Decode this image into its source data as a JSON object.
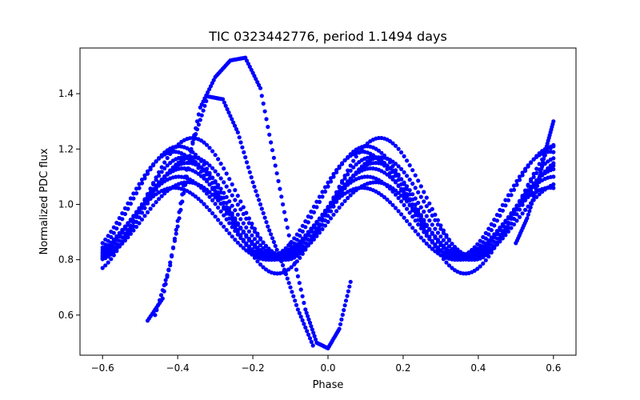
{
  "chart_data": {
    "type": "scatter",
    "title": "TIC 0323442776, period 1.1494 days",
    "xlabel": "Phase",
    "ylabel": "Normalized PDC flux",
    "xlim": [
      -0.66,
      0.66
    ],
    "ylim": [
      0.455,
      1.565
    ],
    "xticks": [
      -0.6,
      -0.4,
      -0.2,
      0.0,
      0.2,
      0.4,
      0.6
    ],
    "xtick_labels": [
      "−0.6",
      "−0.4",
      "−0.2",
      "0.0",
      "0.2",
      "0.4",
      "0.6"
    ],
    "yticks": [
      0.6,
      0.8,
      1.0,
      1.2,
      1.4
    ],
    "ytick_labels": [
      "0.6",
      "0.8",
      "1.0",
      "1.2",
      "1.4"
    ],
    "grid": false,
    "legend": "none",
    "marker_color": "#0000ff",
    "phase_range": [
      -0.6,
      0.6
    ],
    "flux_range": [
      0.48,
      1.53
    ],
    "series": [
      {
        "description": "band of many overlapping cycles, amplitude ~0.18, peaks near phase -0.23 and 0.27",
        "amplitudes": [
          0.13,
          0.15,
          0.16,
          0.17,
          0.18,
          0.19,
          0.2,
          0.21,
          0.14,
          0.22
        ],
        "offsets": [
          0.93,
          0.95,
          0.97,
          0.98,
          0.99,
          1.0,
          1.01,
          0.96,
          0.94,
          1.02
        ]
      },
      {
        "description": "high-amplitude excursions",
        "x": [
          -0.46,
          -0.42,
          -0.38,
          -0.34,
          -0.3,
          -0.26,
          -0.22,
          -0.18,
          -0.14,
          -0.1,
          -0.06,
          -0.03,
          0.0,
          0.03,
          0.06
        ],
        "y": [
          0.6,
          0.78,
          1.1,
          1.35,
          1.46,
          1.52,
          1.53,
          1.42,
          1.14,
          0.86,
          0.62,
          0.5,
          0.48,
          0.55,
          0.72
        ]
      },
      {
        "description": "second excursion track",
        "x": [
          -0.48,
          -0.44,
          -0.4,
          -0.36,
          -0.32,
          -0.28,
          -0.24,
          -0.2,
          -0.16,
          -0.12,
          -0.08,
          -0.04
        ],
        "y": [
          0.58,
          0.66,
          0.92,
          1.22,
          1.39,
          1.38,
          1.26,
          1.08,
          0.92,
          0.78,
          0.62,
          0.49
        ]
      },
      {
        "description": "edge tracks rising to 1.30 at phase 0.6",
        "x": [
          0.5,
          0.53,
          0.56,
          0.58,
          0.6
        ],
        "y": [
          0.86,
          0.95,
          1.08,
          1.2,
          1.3
        ]
      }
    ]
  }
}
